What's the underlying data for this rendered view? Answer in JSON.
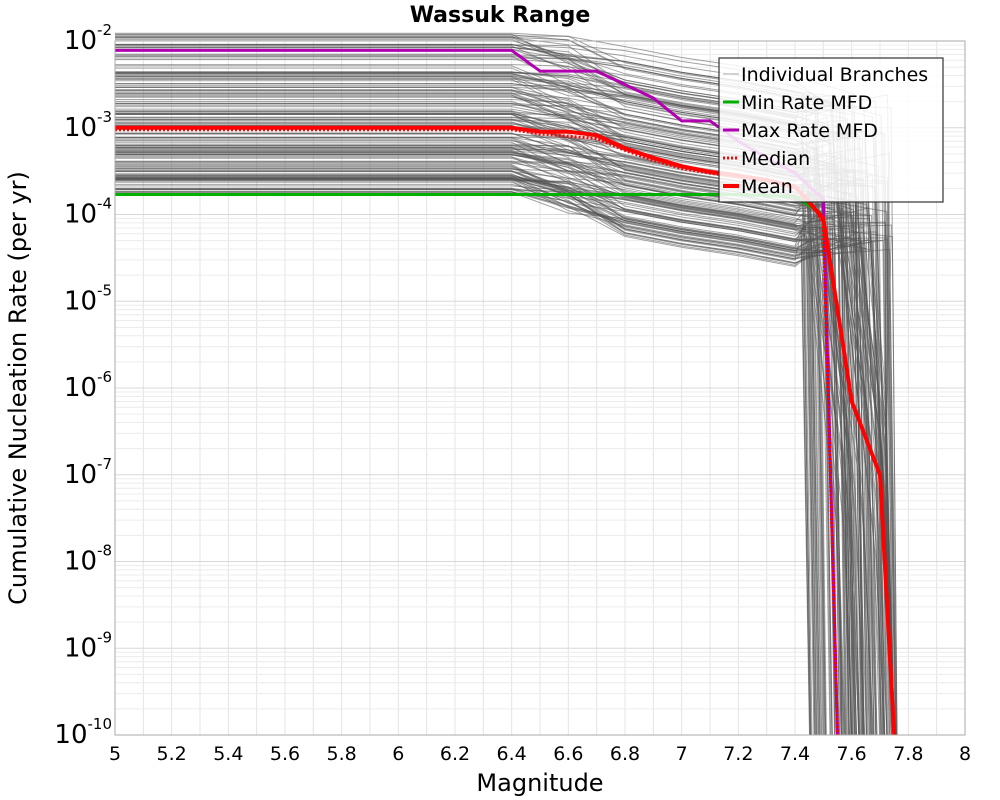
{
  "chart_data": {
    "type": "line",
    "title": "Wassuk Range",
    "xlabel": "Magnitude",
    "ylabel": "Cumulative Nucleation Rate (per yr)",
    "xlim": [
      5,
      8
    ],
    "ylim": [
      1e-10,
      0.01
    ],
    "yscale": "log",
    "grid": true,
    "legend_position": "top-right",
    "x_ticks": [
      "5",
      "5.2",
      "5.4",
      "5.6",
      "5.8",
      "6",
      "6.2",
      "6.4",
      "6.6",
      "6.8",
      "7",
      "7.2",
      "7.4",
      "7.6",
      "7.8",
      "8"
    ],
    "y_ticks": [
      {
        "base": "10",
        "exp": "-10"
      },
      {
        "base": "10",
        "exp": "-9"
      },
      {
        "base": "10",
        "exp": "-8"
      },
      {
        "base": "10",
        "exp": "-7"
      },
      {
        "base": "10",
        "exp": "-6"
      },
      {
        "base": "10",
        "exp": "-5"
      },
      {
        "base": "10",
        "exp": "-4"
      },
      {
        "base": "10",
        "exp": "-3"
      },
      {
        "base": "10",
        "exp": "-2"
      }
    ],
    "legend": [
      {
        "label": "Individual Branches",
        "color": "#aaaaaa",
        "style": "thin"
      },
      {
        "label": "Min Rate MFD",
        "color": "#00b000",
        "style": "solid"
      },
      {
        "label": "Max Rate MFD",
        "color": "#b000b0",
        "style": "solid"
      },
      {
        "label": "Median",
        "color": "#ff0000",
        "style": "dotted"
      },
      {
        "label": "Mean",
        "color": "#ff0000",
        "style": "thick"
      }
    ],
    "series": [
      {
        "name": "Min Rate MFD",
        "color": "#00b000",
        "x": [
          5.0,
          6.4,
          7.0,
          7.2,
          7.3,
          7.4,
          7.5,
          7.55
        ],
        "y": [
          0.00017,
          0.00017,
          0.00017,
          0.00017,
          0.000165,
          0.00016,
          0.0001,
          1e-10
        ]
      },
      {
        "name": "Max Rate MFD",
        "color": "#b000b0",
        "x": [
          5.0,
          6.4,
          6.5,
          6.7,
          6.9,
          7.0,
          7.1,
          7.2,
          7.3,
          7.4,
          7.5,
          7.55
        ],
        "y": [
          0.0078,
          0.0078,
          0.0045,
          0.0045,
          0.0022,
          0.0012,
          0.0012,
          0.0007,
          0.00045,
          0.0003,
          0.00015,
          1e-10
        ]
      },
      {
        "name": "Median",
        "color": "#ff0000",
        "x": [
          5.0,
          6.4,
          6.5,
          6.7,
          6.8,
          6.9,
          7.0,
          7.1,
          7.2,
          7.3,
          7.4,
          7.45,
          7.5,
          7.55
        ],
        "y": [
          0.00095,
          0.00095,
          0.00085,
          0.00075,
          0.00055,
          0.00042,
          0.00034,
          0.0003,
          0.00027,
          0.00024,
          0.0002,
          0.00015,
          8e-05,
          1e-10
        ]
      },
      {
        "name": "Mean",
        "color": "#ff0000",
        "x": [
          5.0,
          6.4,
          6.5,
          6.6,
          6.7,
          6.8,
          6.9,
          7.0,
          7.1,
          7.2,
          7.3,
          7.4,
          7.5,
          7.6,
          7.7,
          7.75
        ],
        "y": [
          0.001,
          0.001,
          0.0009,
          0.0009,
          0.00082,
          0.00058,
          0.00045,
          0.00036,
          0.00031,
          0.00028,
          0.00025,
          0.00021,
          9e-05,
          7e-07,
          1e-07,
          1e-10
        ]
      }
    ]
  }
}
